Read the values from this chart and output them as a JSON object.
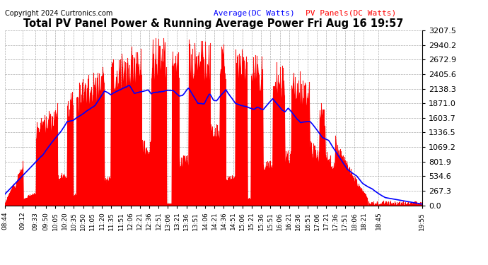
{
  "title": "Total PV Panel Power & Running Average Power Fri Aug 16 19:57",
  "copyright": "Copyright 2024 Curtronics.com",
  "legend_avg": "Average(DC Watts)",
  "legend_pv": "PV Panels(DC Watts)",
  "bg_color": "#ffffff",
  "plot_bg_color": "#ffffff",
  "grid_color": "#999999",
  "bar_color": "red",
  "avg_color": "blue",
  "yticks": [
    0.0,
    267.3,
    534.6,
    801.9,
    1069.2,
    1336.5,
    1603.7,
    1871.0,
    2138.3,
    2405.6,
    2672.9,
    2940.2,
    3207.5
  ],
  "ymax": 3207.5,
  "ymin": 0.0,
  "xtick_labels": [
    "08:44",
    "09:12",
    "09:33",
    "09:50",
    "10:05",
    "10:20",
    "10:35",
    "10:50",
    "11:05",
    "11:20",
    "11:35",
    "11:51",
    "12:06",
    "12:21",
    "12:36",
    "12:51",
    "13:06",
    "13:21",
    "13:36",
    "13:51",
    "14:06",
    "14:21",
    "14:36",
    "14:51",
    "15:06",
    "15:21",
    "15:36",
    "15:51",
    "16:06",
    "16:21",
    "16:36",
    "16:51",
    "17:06",
    "17:21",
    "17:36",
    "17:51",
    "18:06",
    "18:21",
    "18:45",
    "19:55"
  ]
}
